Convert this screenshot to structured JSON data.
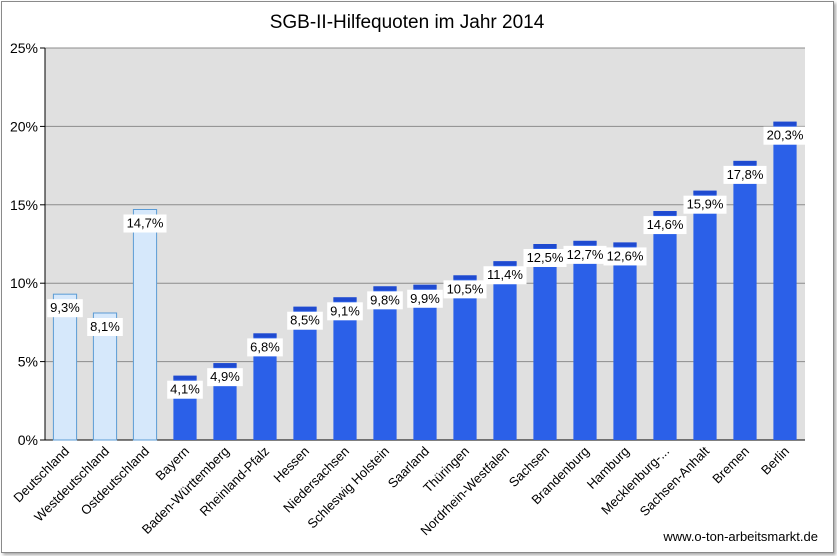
{
  "chart_data": {
    "type": "bar",
    "title": "SGB-II-Hilfequoten  im Jahr 2014",
    "xlabel": "",
    "ylabel": "",
    "ylim": [
      0,
      25
    ],
    "yticks": [
      "0%",
      "5%",
      "10%",
      "15%",
      "20%",
      "25%"
    ],
    "grid": true,
    "legend": "none",
    "categories": [
      "Deutschland",
      "Westdeutschland",
      "Ostdeutschland",
      "Bayern",
      "Baden-Württemberg",
      "Rheinland-Pfalz",
      "Hessen",
      "Niedersachsen",
      "Schleswig Holstein",
      "Saarland",
      "Thüringen",
      "Nordrhein-Westfalen",
      "Sachsen",
      "Brandenburg",
      "Hamburg",
      "Mecklenburg-...",
      "Sachsen-Anhalt",
      "Bremen",
      "Berlin"
    ],
    "values": [
      9.3,
      8.1,
      14.7,
      4.1,
      4.9,
      6.8,
      8.5,
      9.1,
      9.8,
      9.9,
      10.5,
      11.4,
      12.5,
      12.7,
      12.6,
      14.6,
      15.9,
      17.8,
      20.3
    ],
    "labels": [
      "9,3%",
      "8,1%",
      "14,7%",
      "4,1%",
      "4,9%",
      "6,8%",
      "8,5%",
      "9,1%",
      "9,8%",
      "9,9%",
      "10,5%",
      "11,4%",
      "12,5%",
      "12,7%",
      "12,6%",
      "14,6%",
      "15,9%",
      "17,8%",
      "20,3%"
    ],
    "bar_types": [
      "aggregate",
      "aggregate",
      "aggregate",
      "state",
      "state",
      "state",
      "state",
      "state",
      "state",
      "state",
      "state",
      "state",
      "state",
      "state",
      "state",
      "state",
      "state",
      "state",
      "state"
    ],
    "colors": {
      "aggregate_fill": "#d6e8fb",
      "aggregate_border": "#5b9bd5",
      "state_fill": "#2b60e8",
      "state_top": "#1f4ad0",
      "plot_bg": "#e0e0e0",
      "grid": "#8c8c8c"
    }
  },
  "footer": {
    "source": "www.o-ton-arbeitsmarkt.de"
  }
}
